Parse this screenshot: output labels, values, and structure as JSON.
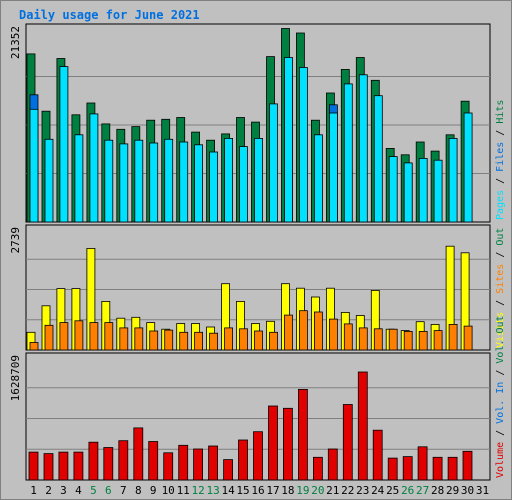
{
  "chart_data": {
    "type": "bar",
    "title": "Daily usage for June 2021",
    "days": [
      "1",
      "2",
      "3",
      "4",
      "5",
      "6",
      "7",
      "8",
      "9",
      "10",
      "11",
      "12",
      "13",
      "14",
      "15",
      "16",
      "17",
      "18",
      "19",
      "20",
      "21",
      "22",
      "23",
      "24",
      "25",
      "26",
      "27",
      "28",
      "29",
      "30",
      "31"
    ],
    "weekend_days": [
      5,
      6,
      12,
      13,
      19,
      20,
      26,
      27
    ],
    "panels": [
      {
        "id": "hits-files-pages",
        "ytick": "21352",
        "ymax": 21352,
        "side_labels": [
          {
            "text": "Pages",
            "color": "#00e0ff"
          },
          {
            "text": "Files",
            "color": "#0070e0"
          },
          {
            "text": "Hits",
            "color": "#008040"
          }
        ],
        "series": [
          {
            "name": "Hits",
            "color": "#008040",
            "values": [
              18500,
              12200,
              18000,
              11800,
              13100,
              10800,
              10200,
              10500,
              11200,
              11300,
              11500,
              9900,
              9000,
              9700,
              11500,
              11000,
              18200,
              21300,
              20800,
              11200,
              14200,
              16800,
              18100,
              15600,
              8100,
              7400,
              8800,
              7800,
              9600,
              13300,
              null
            ]
          },
          {
            "name": "Files",
            "color": "#0070e0",
            "values": [
              14000,
              null,
              null,
              null,
              null,
              null,
              null,
              null,
              null,
              null,
              null,
              null,
              null,
              null,
              null,
              null,
              null,
              16200,
              null,
              null,
              12900,
              null,
              null,
              null,
              null,
              6400,
              null,
              null,
              null,
              null,
              null
            ]
          },
          {
            "name": "Pages",
            "color": "#00e0ff",
            "values": [
              12400,
              9100,
              17100,
              9600,
              11900,
              9000,
              8600,
              9000,
              8700,
              9100,
              8800,
              8500,
              7700,
              9200,
              8300,
              9200,
              13000,
              18100,
              17000,
              9600,
              12000,
              15200,
              16200,
              13900,
              7200,
              6500,
              7000,
              6800,
              9200,
              12000,
              null
            ]
          }
        ]
      },
      {
        "id": "visits-sites",
        "ytick": "2739",
        "ymax": 2739,
        "side_labels": [
          {
            "text": "Visits",
            "color": "#ffff00"
          },
          {
            "text": "Sites",
            "color": "#ff8000"
          },
          {
            "text": "Out",
            "color": "#008040"
          }
        ],
        "series": [
          {
            "name": "Visits",
            "color": "#ffff00",
            "values": [
              400,
              1000,
              1390,
              1390,
              2300,
              1100,
              720,
              740,
              620,
              470,
              600,
              600,
              520,
              1500,
              1100,
              600,
              650,
              1500,
              1400,
              1200,
              1400,
              850,
              780,
              1350,
              470,
              440,
              640,
              580,
              2350,
              2200,
              null
            ]
          },
          {
            "name": "Sites",
            "color": "#ff8000",
            "values": [
              170,
              560,
              620,
              660,
              620,
              620,
              500,
              500,
              430,
              450,
              400,
              400,
              380,
              500,
              480,
              430,
              400,
              790,
              890,
              860,
              700,
              590,
              500,
              480,
              470,
              420,
              420,
              440,
              580,
              540,
              null
            ]
          }
        ]
      },
      {
        "id": "volume",
        "ytick": "1628709",
        "ymax": 1628709,
        "side_labels": [
          {
            "text": "Volume",
            "color": "#e00000"
          },
          {
            "text": "Vol. In",
            "color": "#0070e0"
          },
          {
            "text": "Vol. Out",
            "color": "#008040"
          }
        ],
        "series": [
          {
            "name": "Volume",
            "color": "#e00000",
            "values": [
              370000,
              350000,
              370000,
              370000,
              500000,
              430000,
              520000,
              690000,
              510000,
              360000,
              460000,
              410000,
              450000,
              270000,
              530000,
              640000,
              980000,
              950000,
              1200000,
              300000,
              410000,
              1000000,
              1430000,
              660000,
              290000,
              310000,
              440000,
              300000,
              300000,
              380000,
              null
            ]
          }
        ]
      }
    ]
  }
}
